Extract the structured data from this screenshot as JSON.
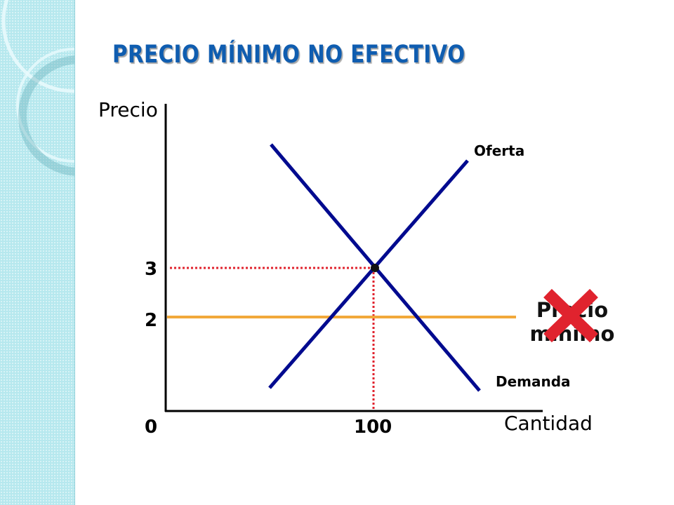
{
  "slide": {
    "title": "PRECIO MÍNIMO NO EFECTIVO"
  },
  "diagram": {
    "y_axis_label": "Precio",
    "x_axis_label": "Cantidad",
    "origin_label": "0",
    "price_ticks": [
      "3",
      "2"
    ],
    "quantity_ticks": [
      "100"
    ],
    "supply_label": "Oferta",
    "demand_label": "Demanda",
    "price_floor_label_line1": "Precio",
    "price_floor_label_line2": "mínimo",
    "equilibrium_price": 3,
    "equilibrium_quantity": 100,
    "price_floor": 2,
    "price_floor_marked_invalid": true,
    "colors": {
      "curves": "#000a8f",
      "price_floor_line": "#f2a83a",
      "guide_lines": "#e0232e",
      "cross_mark": "#e0232e",
      "title": "#0f5db0",
      "side_band": "#b6e8ee"
    },
    "icons": [
      "cross-icon"
    ]
  }
}
